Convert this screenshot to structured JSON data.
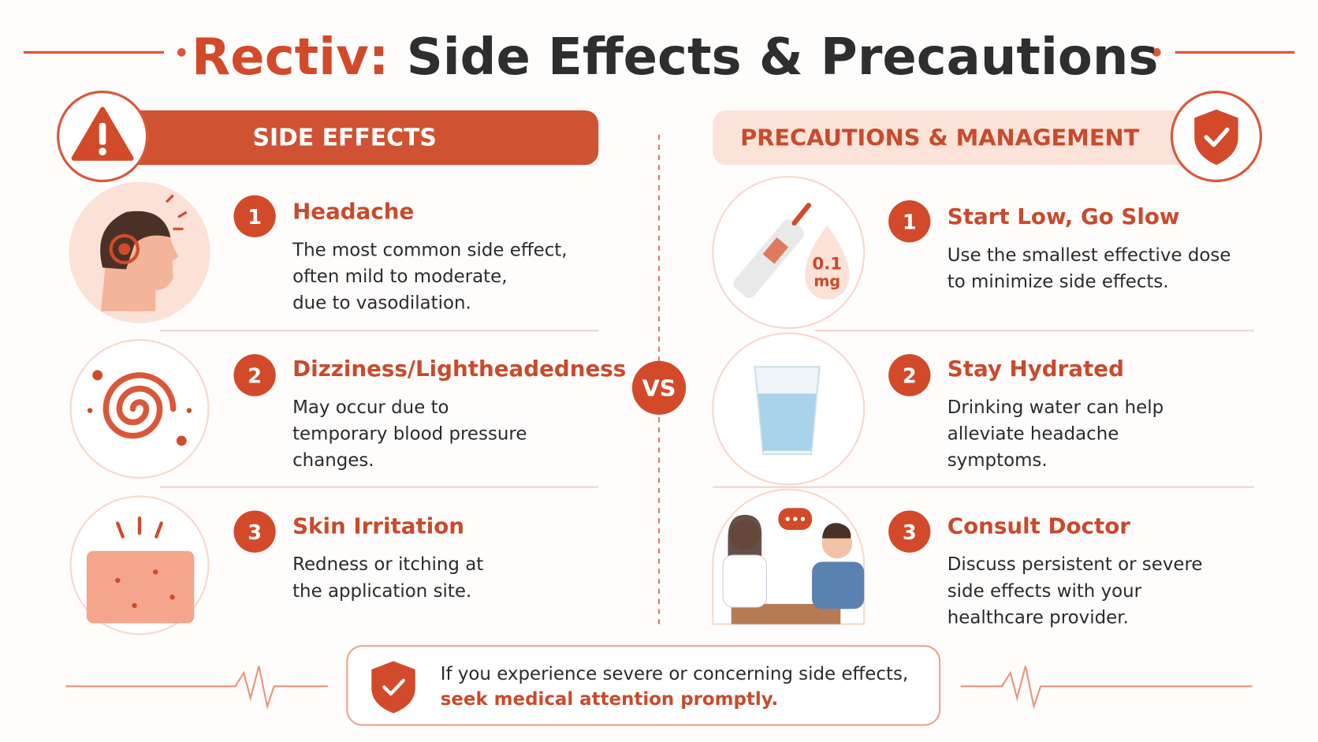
{
  "title": {
    "brand": "Rectiv:",
    "rest": "Side Effects & Precautions"
  },
  "side_effects": {
    "heading": "SIDE EFFECTS",
    "items": [
      {
        "number": 1,
        "title": "Headache",
        "lines": [
          "The most common side effect,",
          "often mild to moderate,",
          "due to vasodilation."
        ]
      },
      {
        "number": 2,
        "title": "Dizziness/Lightheadedness",
        "lines": [
          "May occur due to",
          "temporary blood pressure",
          "changes."
        ]
      },
      {
        "number": 3,
        "title": "Skin Irritation",
        "lines": [
          "Redness or itching at",
          "the application site."
        ]
      }
    ]
  },
  "vs": "VS",
  "precautions": {
    "heading": "PRECAUTIONS & MANAGEMENT",
    "dose": {
      "amount": "0.1",
      "unit": "mg"
    },
    "items": [
      {
        "number": 1,
        "title": "Start Low, Go Slow",
        "lines": [
          "Use the smallest effective dose",
          "to minimize side effects."
        ]
      },
      {
        "number": 2,
        "title": "Stay Hydrated",
        "lines": [
          "Drinking water can help",
          "alleviate headache",
          "symptoms."
        ]
      },
      {
        "number": 3,
        "title": "Consult Doctor",
        "lines": [
          "Discuss persistent or severe",
          "side effects with your",
          "healthcare provider."
        ]
      }
    ]
  },
  "footer": {
    "line1": "If you experience severe or concerning side effects,",
    "line2": "seek medical attention promptly."
  }
}
